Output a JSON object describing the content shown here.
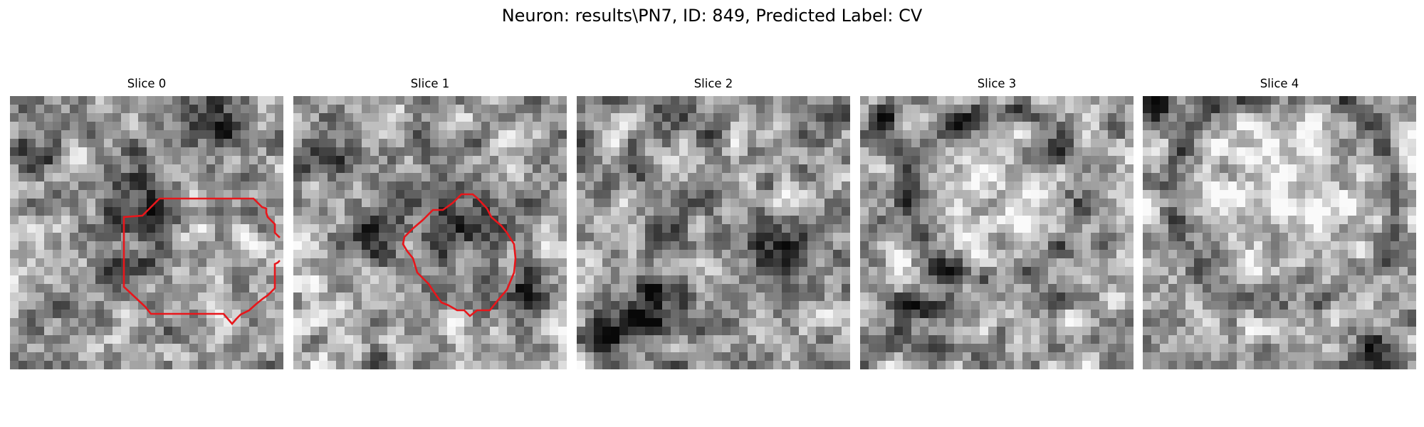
{
  "figure": {
    "title": "Neuron: results\\PN7, ID: 849, Predicted Label: CV"
  },
  "colors": {
    "contour": "#e8161b",
    "background": "#ffffff"
  },
  "slices": [
    {
      "title": "Slice 0",
      "has_contour": true
    },
    {
      "title": "Slice 1",
      "has_contour": true
    },
    {
      "title": "Slice 2",
      "has_contour": false
    },
    {
      "title": "Slice 3",
      "has_contour": false
    },
    {
      "title": "Slice 4",
      "has_contour": false
    }
  ]
}
